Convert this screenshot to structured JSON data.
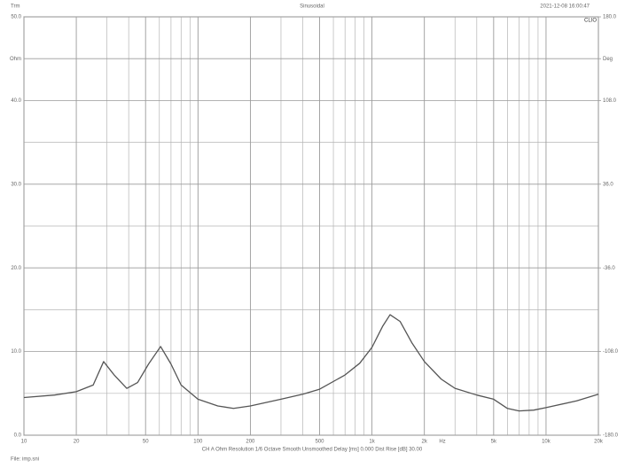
{
  "chart_data": {
    "type": "line",
    "left_label": "Trm",
    "title": "Sinusoidal",
    "timestamp": "2021-12-08 16:00:47",
    "brand": "CLIO",
    "x_unit_label": "Hz",
    "footer": "CH A   Ohm   Resolution 1/6 Octave   Smooth Unsmoothed   Delay [ms] 0.000   Dist Rise [dB] 30.00",
    "file_label": "File: imp.sni",
    "log_x": true,
    "xlim": [
      10,
      20000
    ],
    "xticks": [
      10,
      20,
      50,
      100,
      200,
      500,
      {
        "value": 1000,
        "label": "1k"
      },
      {
        "value": 2000,
        "label": "2k"
      },
      {
        "value": 5000,
        "label": "5k"
      },
      {
        "value": 10000,
        "label": "10k"
      },
      {
        "value": 20000,
        "label": "20k"
      }
    ],
    "ylim": [
      0,
      50
    ],
    "yticks": [
      {
        "value": 0,
        "label": "0.0"
      },
      {
        "value": 10,
        "label": "10.0"
      },
      {
        "value": 20,
        "label": "20.0"
      },
      {
        "value": 30,
        "label": "30.0"
      },
      {
        "value": 40,
        "label": "40.0"
      },
      {
        "value": 45,
        "label": "Ohm"
      },
      {
        "value": 50,
        "label": "50.0"
      }
    ],
    "ygrid_minor": [
      5,
      15,
      25,
      35
    ],
    "y2lim": [
      -180,
      180
    ],
    "y2ticks": [
      {
        "value": -180,
        "label": "-180.0"
      },
      {
        "value": -108,
        "label": "-108.0"
      },
      {
        "value": -36,
        "label": "-36.0"
      },
      {
        "value": 36,
        "label": "36.0"
      },
      {
        "value": 108,
        "label": "108.0"
      },
      {
        "value": 144,
        "label": "Deg"
      },
      {
        "value": 180,
        "label": "180.0"
      }
    ],
    "grid": true,
    "x": [
      10,
      15,
      20,
      25,
      28.7,
      33,
      39,
      45,
      52,
      61,
      70,
      80,
      100,
      130,
      160,
      200,
      300,
      400,
      500,
      700,
      850,
      1000,
      1150,
      1270,
      1450,
      1700,
      2000,
      2500,
      3000,
      4000,
      5000,
      6000,
      7000,
      8500,
      10000,
      15000,
      20000
    ],
    "series": [
      {
        "color": "#555555",
        "values": [
          4.5,
          4.8,
          5.2,
          6.0,
          8.8,
          7.2,
          5.6,
          6.3,
          8.5,
          10.6,
          8.5,
          6.0,
          4.3,
          3.5,
          3.2,
          3.5,
          4.3,
          4.9,
          5.5,
          7.2,
          8.6,
          10.5,
          13.0,
          14.4,
          13.6,
          11.0,
          8.8,
          6.7,
          5.6,
          4.8,
          4.3,
          3.2,
          2.9,
          3.0,
          3.3,
          4.1,
          4.9
        ]
      }
    ]
  }
}
